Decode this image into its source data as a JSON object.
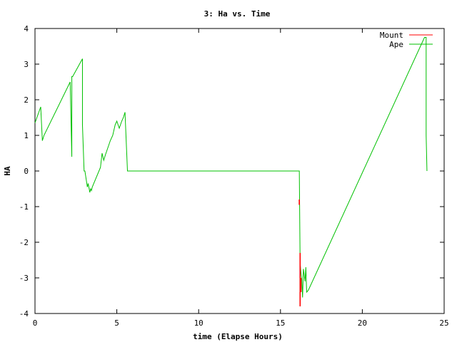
{
  "chart_data": {
    "type": "line",
    "title": "3: Ha vs. Time",
    "xlabel": "time (Elapse Hours)",
    "ylabel": "HA",
    "xlim": [
      0,
      25
    ],
    "ylim": [
      -4,
      4
    ],
    "x_ticks": [
      "0",
      "5",
      "10",
      "15",
      "20",
      "25"
    ],
    "y_ticks": [
      "-4",
      "-3",
      "-2",
      "-1",
      "0",
      "1",
      "2",
      "3",
      "4"
    ],
    "x_tick_values": [
      0,
      5,
      10,
      15,
      20,
      25
    ],
    "y_tick_values": [
      -4,
      -3,
      -2,
      -1,
      0,
      1,
      2,
      3,
      4
    ],
    "grid": false,
    "legend_position": "top-right",
    "series": [
      {
        "name": "Mount",
        "color": "#ff0000",
        "x": [
          16.15,
          16.15,
          16.15,
          16.2,
          16.2,
          16.2,
          16.25,
          16.25
        ],
        "y": [
          -0.8,
          -0.95,
          null,
          -2.3,
          -3.8,
          null,
          -3.0,
          -3.4
        ]
      },
      {
        "name": "Ape",
        "color": "#00c000",
        "x": [
          0.0,
          0.35,
          0.45,
          0.55,
          2.15,
          2.25,
          2.25,
          2.3,
          2.9,
          2.9,
          3.0,
          3.05,
          3.2,
          3.25,
          3.35,
          3.4,
          3.45,
          3.5,
          4.0,
          4.1,
          4.2,
          4.3,
          4.45,
          4.6,
          4.75,
          4.9,
          5.0,
          5.15,
          5.3,
          5.4,
          5.5,
          5.65,
          5.75,
          5.85,
          16.15,
          16.2,
          16.25,
          16.3,
          16.35,
          16.4,
          16.5,
          16.55,
          16.6,
          16.7,
          23.8,
          23.9,
          23.9,
          23.95
        ],
        "y": [
          1.35,
          1.8,
          0.85,
          1.0,
          2.5,
          0.4,
          2.65,
          2.65,
          3.15,
          1.3,
          0.0,
          0.0,
          -0.45,
          -0.35,
          -0.6,
          -0.5,
          -0.55,
          -0.45,
          0.1,
          0.5,
          0.3,
          0.45,
          0.65,
          0.85,
          1.0,
          1.3,
          1.4,
          1.2,
          1.4,
          1.5,
          1.65,
          0.0,
          0.0,
          0.0,
          0.0,
          -2.6,
          -2.85,
          -3.05,
          -3.55,
          -2.75,
          -3.1,
          -2.7,
          -3.4,
          -3.35,
          3.75,
          3.75,
          1.0,
          0.0
        ]
      }
    ]
  }
}
